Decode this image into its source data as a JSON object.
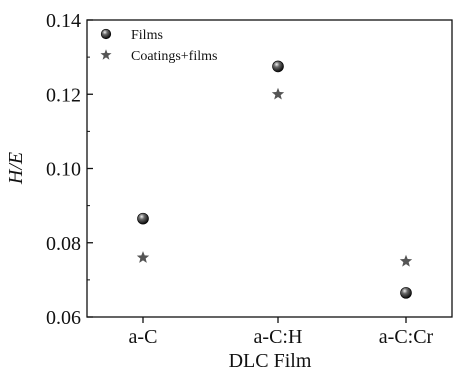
{
  "chart_data": {
    "type": "scatter",
    "xlabel": "DLC Film",
    "ylabel": "H/E",
    "categories": [
      "a-C",
      "a-C:H",
      "a-C:Cr"
    ],
    "ylim": [
      0.06,
      0.14
    ],
    "yticks": [
      "0.06",
      "0.08",
      "0.10",
      "0.12",
      "0.14"
    ],
    "grid": false,
    "legend_position": "top-left",
    "series": [
      {
        "name": "Films",
        "marker": "sphere",
        "color": "#1a1a1a",
        "values": [
          0.0865,
          0.1275,
          0.0665
        ]
      },
      {
        "name": "Coatings+films",
        "marker": "star",
        "color": "#555555",
        "values": [
          0.076,
          0.12,
          0.075
        ]
      }
    ]
  }
}
